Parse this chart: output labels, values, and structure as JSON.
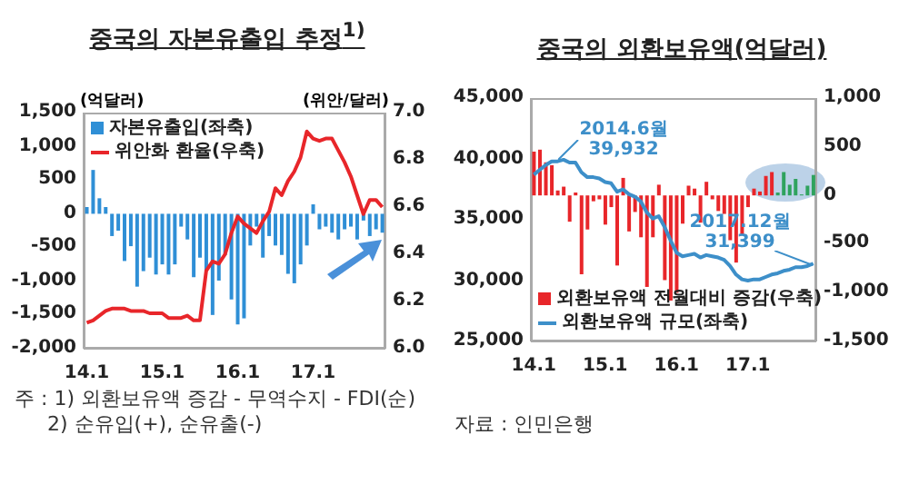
{
  "chart_data": [
    {
      "type": "bar",
      "title": "중국의 자본유출입 추정$^{1)}$",
      "ylabel": "(억달러)",
      "y2label": "(위안/달러)",
      "categories": [
        "14.1",
        null,
        null,
        null,
        null,
        null,
        null,
        null,
        null,
        null,
        null,
        null,
        "15.1",
        null,
        null,
        null,
        null,
        null,
        null,
        null,
        null,
        null,
        null,
        null,
        "16.1",
        null,
        null,
        null,
        null,
        null,
        null,
        null,
        null,
        null,
        null,
        null,
        "17.1",
        null,
        null,
        null,
        null,
        null,
        null,
        null,
        null,
        null,
        null,
        null
      ],
      "series": [
        {
          "name": "자본유출입(좌축)",
          "color": "#2f8fd6",
          "values": [
            100,
            650,
            230,
            100,
            -330,
            -250,
            -700,
            -480,
            -1080,
            -850,
            -650,
            -900,
            -750,
            -900,
            -750,
            -190,
            -380,
            -940,
            -650,
            -850,
            -1500,
            -990,
            -610,
            -1270,
            -1640,
            -1550,
            -470,
            -190,
            -650,
            -330,
            -470,
            -610,
            -890,
            -1030,
            -750,
            -470,
            140,
            -230,
            -190,
            -280,
            -380,
            -230,
            -190,
            -380,
            -100,
            -330,
            -230,
            -280
          ]
        },
        {
          "name": "위안화 환율(우축)",
          "type": "line",
          "axis": "y2",
          "color": "#e8262a",
          "values": [
            6.11,
            6.12,
            6.14,
            6.16,
            6.17,
            6.17,
            6.17,
            6.16,
            6.16,
            6.16,
            6.15,
            6.15,
            6.15,
            6.13,
            6.13,
            6.13,
            6.14,
            6.12,
            6.12,
            6.33,
            6.37,
            6.36,
            6.4,
            6.49,
            6.56,
            6.53,
            6.51,
            6.49,
            6.54,
            6.58,
            6.68,
            6.65,
            6.71,
            6.75,
            6.81,
            6.92,
            6.89,
            6.88,
            6.89,
            6.89,
            6.84,
            6.79,
            6.73,
            6.65,
            6.57,
            6.63,
            6.63,
            6.6
          ]
        }
      ],
      "ylim": [
        -2000,
        1500
      ],
      "yticks": [
        {
          "value": -2000,
          "label": "-2,000"
        },
        {
          "value": -1500,
          "label": "-1,500"
        },
        {
          "value": -1000,
          "label": "-1,000"
        },
        -500,
        0,
        500,
        {
          "value": 1000,
          "label": "1,000"
        },
        {
          "value": 1500,
          "label": "1,500"
        }
      ],
      "y2lim": [
        6.0,
        7.0
      ],
      "y2ticks": [
        {
          "value": 6.0,
          "label": "6.0"
        },
        6.2,
        6.4,
        6.6,
        6.8,
        {
          "value": 7.0,
          "label": "7.0"
        }
      ],
      "legend": "top left",
      "annotations": [
        "주 : 1) 외환보유액 증감 - 무역수지 - FDI(순)",
        "2) 순유입(+), 순유출(-)"
      ]
    },
    {
      "type": "bar",
      "title": "중국의 외환보유액(억달러)",
      "categories": [
        "14.1",
        null,
        null,
        null,
        null,
        null,
        null,
        null,
        null,
        null,
        null,
        null,
        "15.1",
        null,
        null,
        null,
        null,
        null,
        null,
        null,
        null,
        null,
        null,
        null,
        "16.1",
        null,
        null,
        null,
        null,
        null,
        null,
        null,
        null,
        null,
        null,
        null,
        "17.1",
        null,
        null,
        null,
        null,
        null,
        null,
        null,
        null,
        null,
        null,
        null
      ],
      "series": [
        {
          "name": "외환보유액 전월대비 증감(우축)",
          "axis": "y2",
          "color": "#e8262a",
          "colors": [
            "#e8262a",
            "#e8262a",
            "#e8262a",
            "#e8262a",
            "#e8262a",
            "#e8262a",
            "#e8262a",
            "#e8262a",
            "#e8262a",
            "#e8262a",
            "#e8262a",
            "#e8262a",
            "#e8262a",
            "#e8262a",
            "#e8262a",
            "#e8262a",
            "#e8262a",
            "#e8262a",
            "#e8262a",
            "#e8262a",
            "#e8262a",
            "#e8262a",
            "#e8262a",
            "#e8262a",
            "#e8262a",
            "#e8262a",
            "#e8262a",
            "#e8262a",
            "#e8262a",
            "#e8262a",
            "#e8262a",
            "#e8262a",
            "#e8262a",
            "#e8262a",
            "#e8262a",
            "#e8262a",
            "#e8262a",
            "#e8262a",
            "#e8262a",
            "#e8262a",
            "#e8262a",
            "#2fa35e",
            "#2fa35e",
            "#2fa35e",
            "#2fa35e",
            "#2fa35e",
            "#2fa35e",
            "#2fa35e"
          ],
          "values": [
            450,
            470,
            340,
            310,
            50,
            90,
            -270,
            30,
            -810,
            -350,
            -60,
            -40,
            -300,
            -120,
            -720,
            180,
            -370,
            -170,
            -430,
            -940,
            -430,
            110,
            -870,
            -1080,
            -1000,
            -290,
            100,
            70,
            -280,
            140,
            -40,
            -160,
            -190,
            -460,
            -690,
            -410,
            -120,
            70,
            40,
            200,
            240,
            30,
            240,
            110,
            170,
            10,
            100,
            210
          ]
        },
        {
          "name": "외환보유액 규모(좌축)",
          "type": "line",
          "color": "#3d8fc9",
          "values": [
            38700,
            39100,
            39500,
            39800,
            39800,
            39932,
            39700,
            39700,
            38900,
            38500,
            38500,
            38400,
            38100,
            38000,
            37300,
            37500,
            37100,
            36900,
            36500,
            35600,
            35100,
            35300,
            34400,
            33300,
            32300,
            32000,
            32100,
            32200,
            31900,
            32100,
            32000,
            31900,
            31700,
            31200,
            30500,
            30100,
            30000,
            30100,
            30100,
            30300,
            30500,
            30600,
            30800,
            30900,
            31100,
            31100,
            31200,
            31399
          ]
        }
      ],
      "ylim": [
        25000,
        45000
      ],
      "yticks": [
        {
          "value": 25000,
          "label": "25,000"
        },
        {
          "value": 30000,
          "label": "30,000"
        },
        {
          "value": 35000,
          "label": "35,000"
        },
        {
          "value": 40000,
          "label": "40,000"
        },
        {
          "value": 45000,
          "label": "45,000"
        }
      ],
      "y2lim": [
        -1500,
        1000
      ],
      "y2ticks": [
        {
          "value": -1500,
          "label": "-1,500"
        },
        {
          "value": -1000,
          "label": "-1,000"
        },
        -500,
        0,
        500,
        {
          "value": 1000,
          "label": "1,000"
        }
      ],
      "legend": "bottom left",
      "annotations": [
        "2014.6월 39,932",
        "2017.12월 31,399",
        "자료 : 인민은행"
      ]
    }
  ]
}
